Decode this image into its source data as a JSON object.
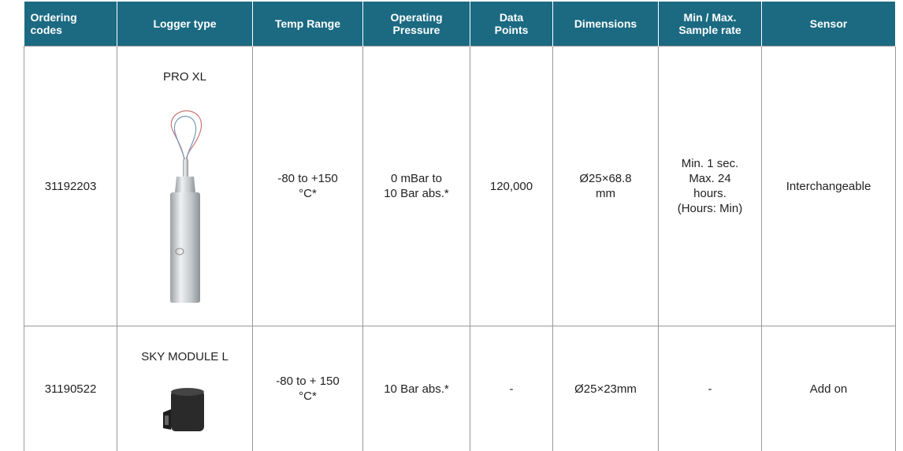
{
  "table": {
    "header": [
      "Ordering\ncodes",
      "Logger type",
      "Temp Range",
      "Operating\nPressure",
      "Data\nPoints",
      "Dimensions",
      "Min / Max.\nSample rate",
      "Sensor"
    ],
    "rows": [
      [
        "31192203",
        "PRO XL",
        "-80 to +150\n°C*",
        "0 mBar to\n10 Bar abs.*",
        "120,000",
        "Ø25×68.8\nmm",
        "Min. 1 sec.\nMax. 24\nhours.\n(Hours: Min)",
        "Interchangeable"
      ],
      [
        "31190522",
        "SKY MODULE L",
        "-80 to + 150\n°C*",
        "10 Bar abs.*",
        "-",
        "Ø25×23mm",
        "-",
        "Add on"
      ]
    ]
  }
}
